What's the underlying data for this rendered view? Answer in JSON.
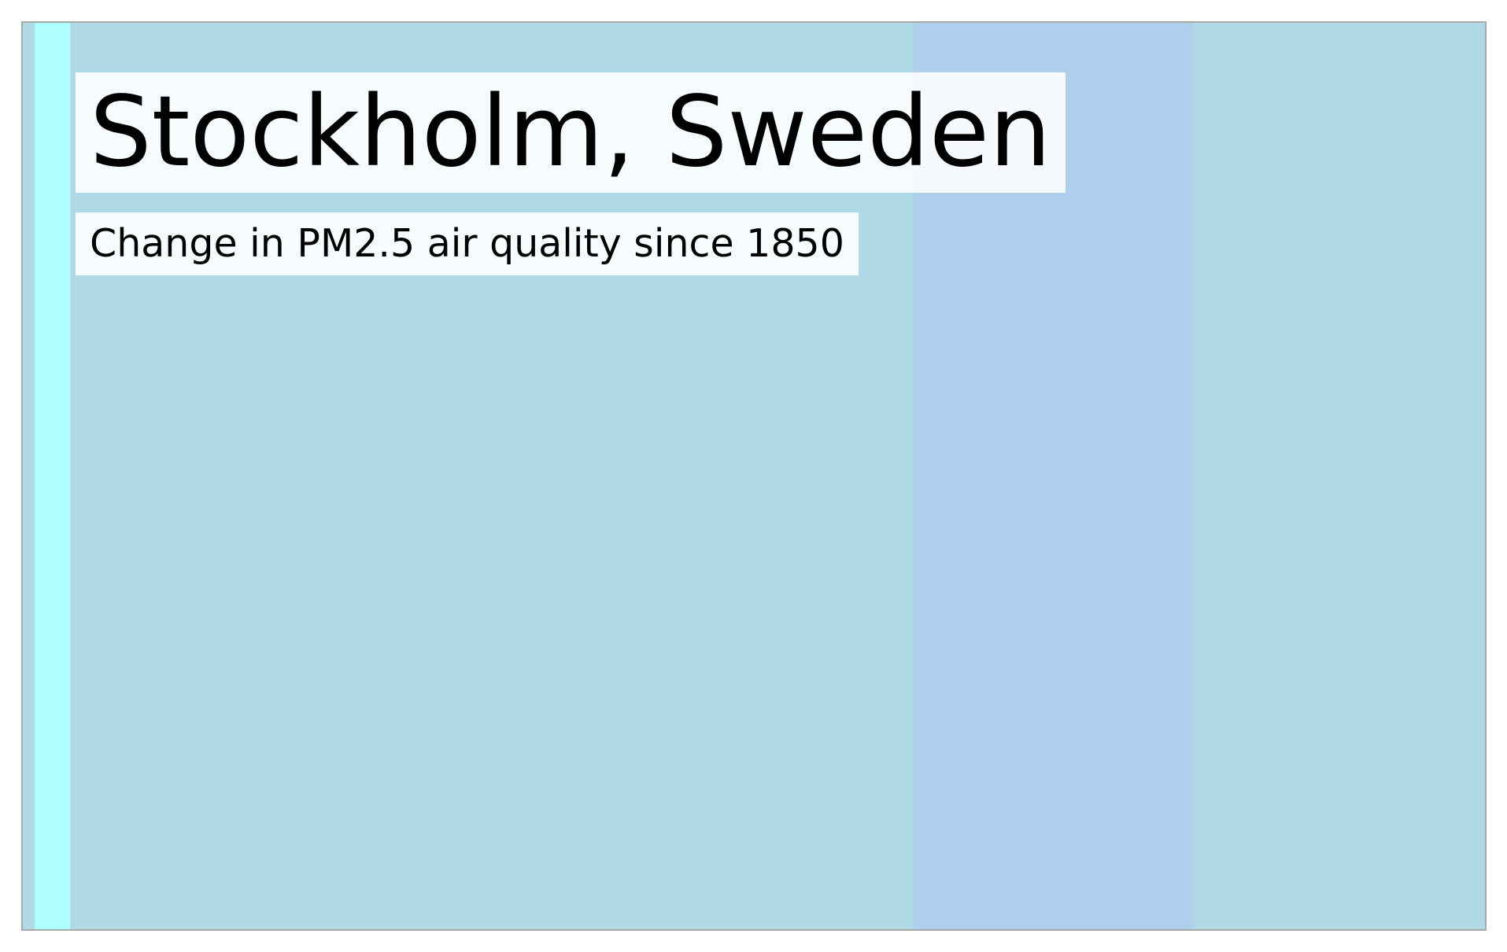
{
  "chart_data": {
    "type": "heatmap",
    "title": "Stockholm, Sweden",
    "subtitle": "Change in PM2.5 air quality since 1850",
    "xlabel": "",
    "ylabel": "",
    "legend": "none",
    "grid": false,
    "x_range": [
      1850,
      2020
    ],
    "bands": [
      {
        "start": 1850,
        "end": 1851.4,
        "color": "#b0d9e8"
      },
      {
        "start": 1851.4,
        "end": 1855.5,
        "color": "#aefffb"
      },
      {
        "start": 1855.5,
        "end": 1953.5,
        "color": "#b0d9e8"
      },
      {
        "start": 1953.5,
        "end": 1986,
        "color": "#b0cfed"
      },
      {
        "start": 1986,
        "end": 2020,
        "color": "#b0d9e8"
      }
    ]
  }
}
